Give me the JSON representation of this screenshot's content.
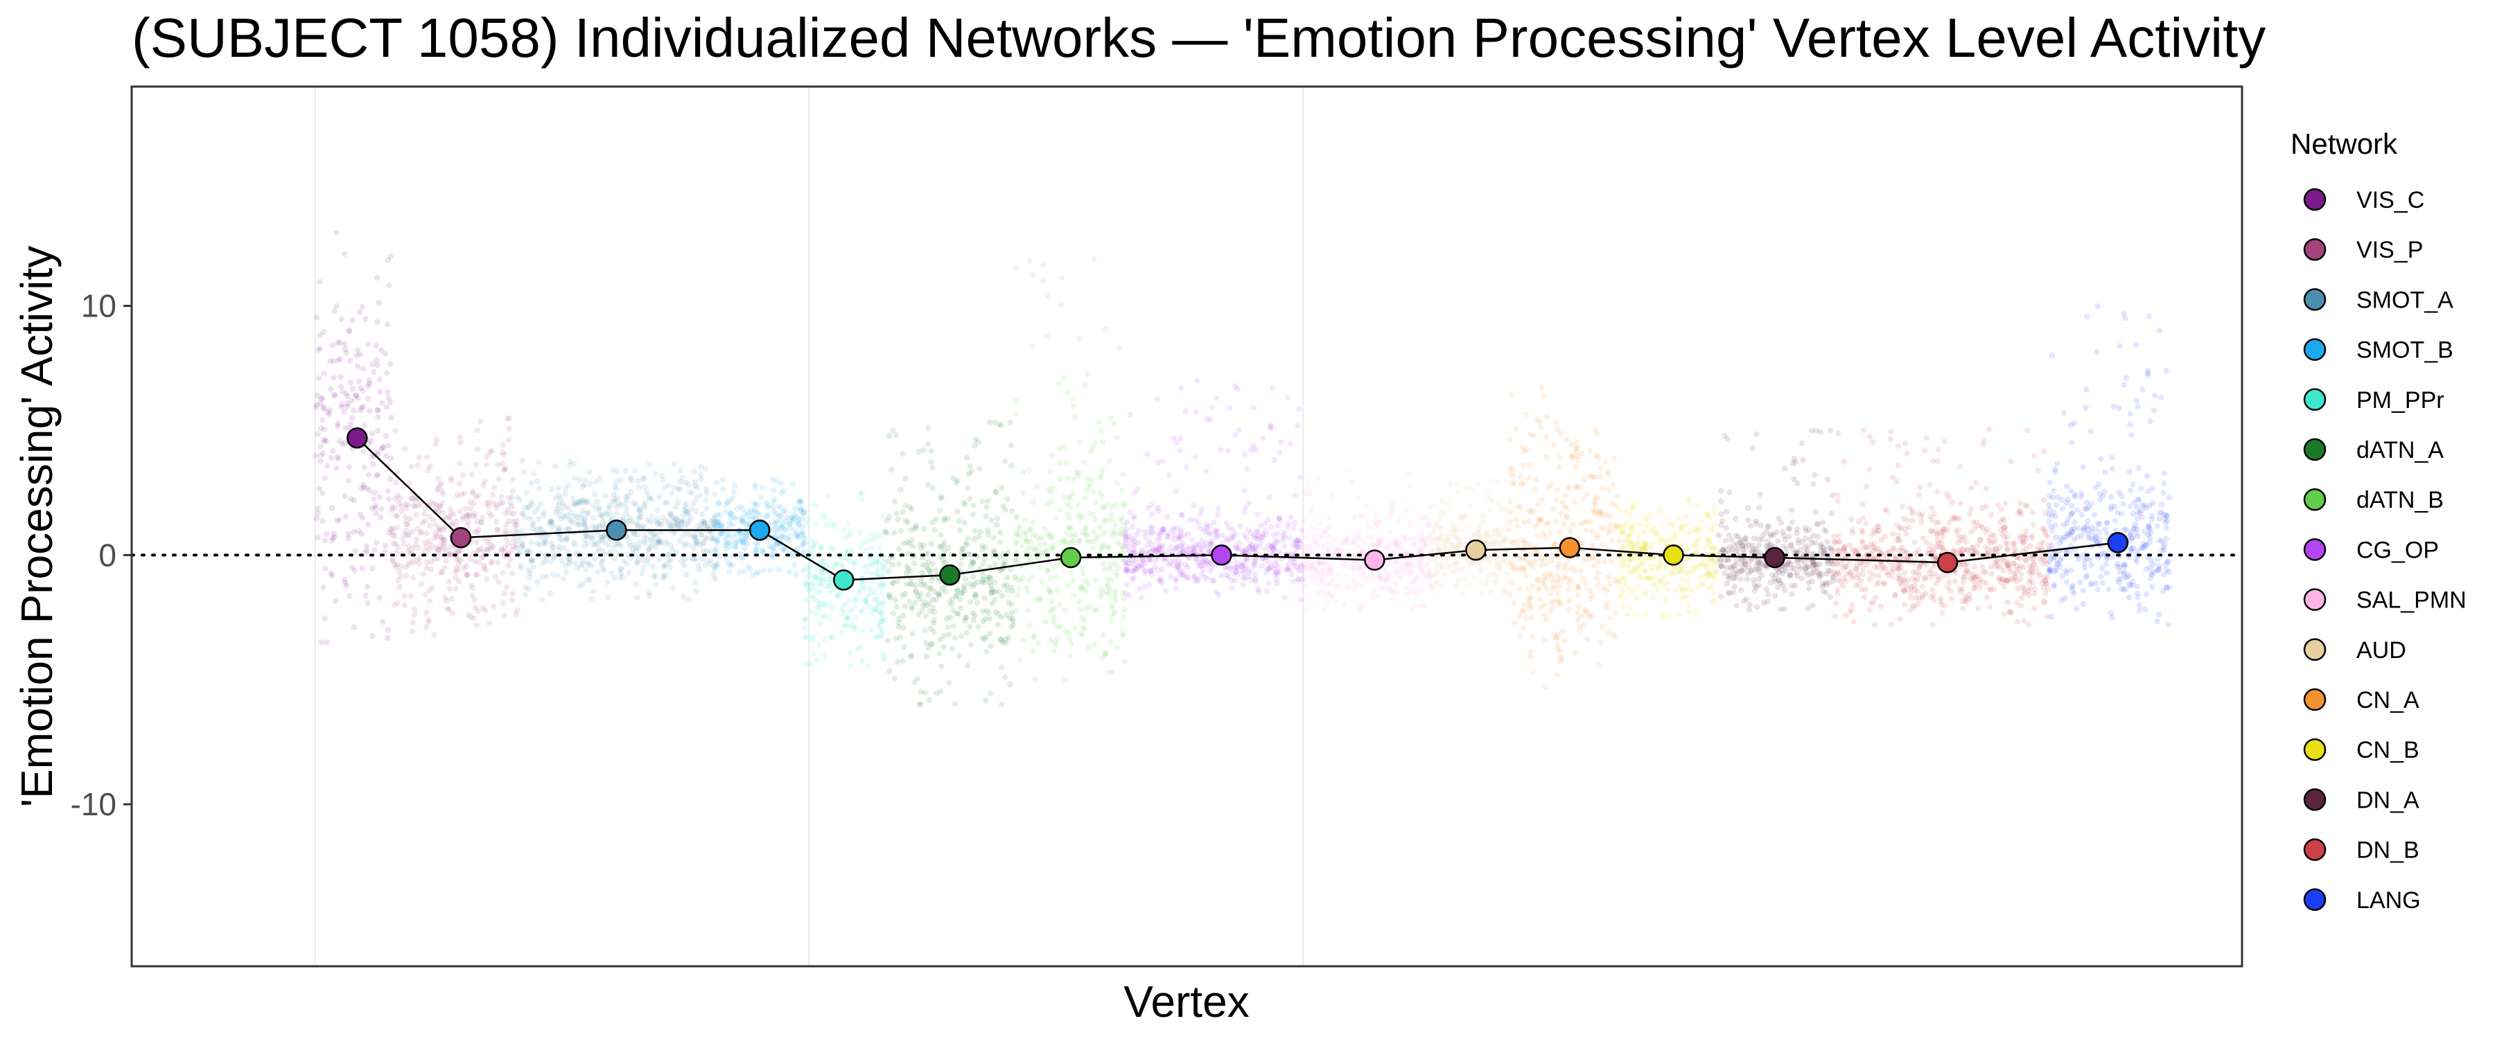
{
  "chart_data": {
    "type": "scatter",
    "title": "(SUBJECT 1058) Individualized Networks — 'Emotion Processing' Vertex Level Activity",
    "xlabel": "Vertex",
    "ylabel": "'Emotion Processing' Activity",
    "ylim": [
      -16.5,
      18.8
    ],
    "yticks": [
      -10,
      0,
      10
    ],
    "ytick_labels": [
      "-10",
      "0",
      "10"
    ],
    "xlim": [
      0,
      59000
    ],
    "x_gridlines": [
      3500,
      23500,
      43500
    ],
    "reference_line": {
      "y": 0,
      "style": "dotted"
    },
    "grid": true,
    "legend": {
      "title": "Network",
      "position": "right"
    },
    "networks": [
      {
        "name": "VIS_C",
        "color": "#7B1A8A",
        "x_start": 3500,
        "x_end": 6600,
        "mean": 4.7,
        "spread_low": -3.5,
        "spread_high": 13.5,
        "mean_x": 5200
      },
      {
        "name": "VIS_P",
        "color": "#A2437E",
        "x_start": 6600,
        "x_end": 11700,
        "mean": 0.7,
        "spread_low": -3.2,
        "spread_high": 5.5,
        "mean_x": 9400
      },
      {
        "name": "SMOT_A",
        "color": "#4A8FB0",
        "x_start": 11700,
        "x_end": 19700,
        "mean": 1.0,
        "spread_low": -1.8,
        "spread_high": 3.8,
        "mean_x": 15700
      },
      {
        "name": "SMOT_B",
        "color": "#1EA8EE",
        "x_start": 19700,
        "x_end": 23300,
        "mean": 1.0,
        "spread_low": -0.8,
        "spread_high": 3.2,
        "mean_x": 21500
      },
      {
        "name": "PM_PPr",
        "color": "#3FE6CC",
        "x_start": 23300,
        "x_end": 26600,
        "mean": -1.0,
        "spread_low": -4.7,
        "spread_high": 2.5,
        "mean_x": 24900
      },
      {
        "name": "dATN_A",
        "color": "#1B7A2A",
        "x_start": 26600,
        "x_end": 31800,
        "mean": -0.8,
        "spread_low": -6.0,
        "spread_high": 5.5,
        "mean_x": 29200
      },
      {
        "name": "dATN_B",
        "color": "#62CD4A",
        "x_start": 31800,
        "x_end": 36300,
        "mean": -0.1,
        "spread_low": -5.0,
        "spread_high": 12.2,
        "mean_x": 34100
      },
      {
        "name": "CG_OP",
        "color": "#B246F2",
        "x_start": 36300,
        "x_end": 43500,
        "mean": 0.0,
        "spread_low": -1.8,
        "spread_high": 7.0,
        "mean_x": 40200
      },
      {
        "name": "SAL_PMN",
        "color": "#FFB6E6",
        "x_start": 43500,
        "x_end": 48700,
        "mean": -0.2,
        "spread_low": -2.2,
        "spread_high": 3.5,
        "mean_x": 46400
      },
      {
        "name": "AUD",
        "color": "#E8CFA0",
        "x_start": 48700,
        "x_end": 51800,
        "mean": 0.2,
        "spread_low": -1.6,
        "spread_high": 3.0,
        "mean_x": 50500
      },
      {
        "name": "CN_A",
        "color": "#F59230",
        "x_start": 51800,
        "x_end": 56300,
        "mean": 0.3,
        "spread_low": -5.3,
        "spread_high": 7.2,
        "mean_x": 54300
      },
      {
        "name": "CN_B",
        "color": "#E9E014",
        "x_start": 56300,
        "x_end": 60300,
        "mean": 0.0,
        "spread_low": -2.6,
        "spread_high": 2.2,
        "mean_x": 58500
      },
      {
        "name": "DN_A",
        "color": "#5A2440",
        "x_start": 60300,
        "x_end": 65000,
        "mean": -0.1,
        "spread_low": -2.2,
        "spread_high": 5.1,
        "mean_x": 62600
      },
      {
        "name": "DN_B",
        "color": "#CC4048",
        "x_start": 65000,
        "x_end": 73700,
        "mean": -0.3,
        "spread_low": -2.8,
        "spread_high": 5.2,
        "mean_x": 69600
      },
      {
        "name": "LANG",
        "color": "#1C3EF5",
        "x_start": 73700,
        "x_end": 78600,
        "mean": 0.5,
        "spread_low": -2.8,
        "spread_high": 10.0,
        "mean_x": 76500
      }
    ]
  }
}
